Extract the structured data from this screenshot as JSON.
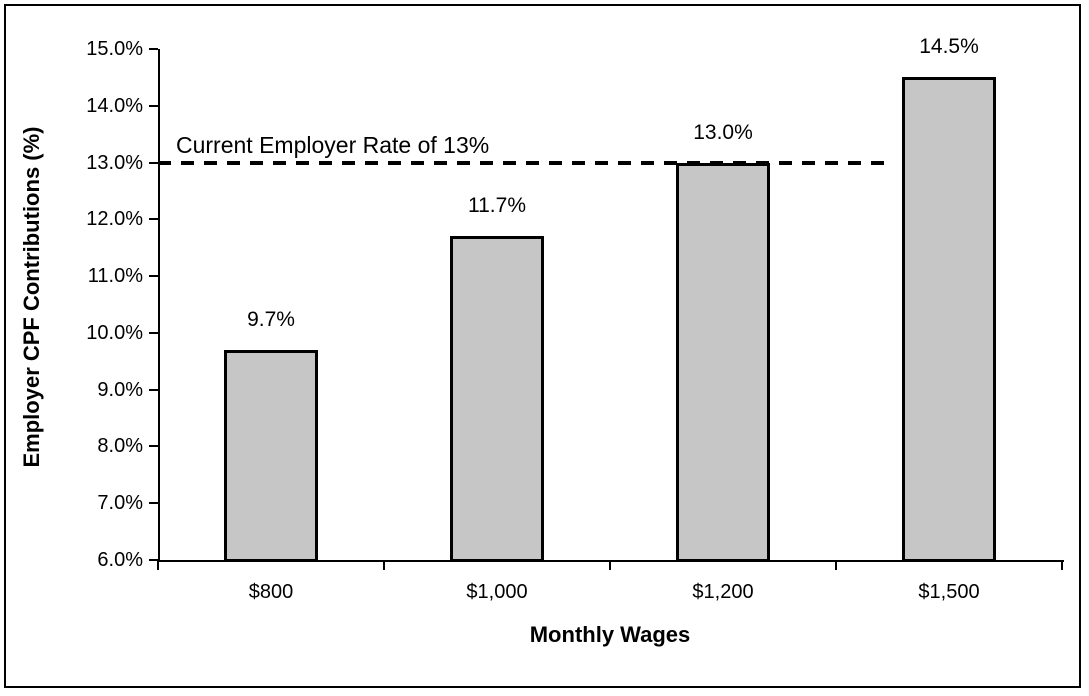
{
  "chart_data": {
    "type": "bar",
    "title": "",
    "xlabel": "Monthly Wages",
    "ylabel": "Employer CPF Contributions (%)",
    "categories": [
      "$800",
      "$1,000",
      "$1,200",
      "$1,500"
    ],
    "values": [
      9.7,
      11.7,
      13.0,
      14.5
    ],
    "value_labels": [
      "9.7%",
      "11.7%",
      "13.0%",
      "14.5%"
    ],
    "ylim": [
      6.0,
      15.0
    ],
    "ytick_step": 1.0,
    "ytick_labels": [
      "6.0%",
      "7.0%",
      "8.0%",
      "9.0%",
      "10.0%",
      "11.0%",
      "12.0%",
      "13.0%",
      "14.0%",
      "15.0%"
    ],
    "grid": false,
    "legend_position": "none",
    "reference_line": {
      "value": 13.0,
      "label": "Current Employer Rate of 13%",
      "style": "dashed",
      "color": "#000000"
    },
    "colors": {
      "bar_fill": "#c6c6c6",
      "bar_border": "#000000",
      "axis": "#000000",
      "text": "#000000",
      "background": "#ffffff"
    }
  }
}
